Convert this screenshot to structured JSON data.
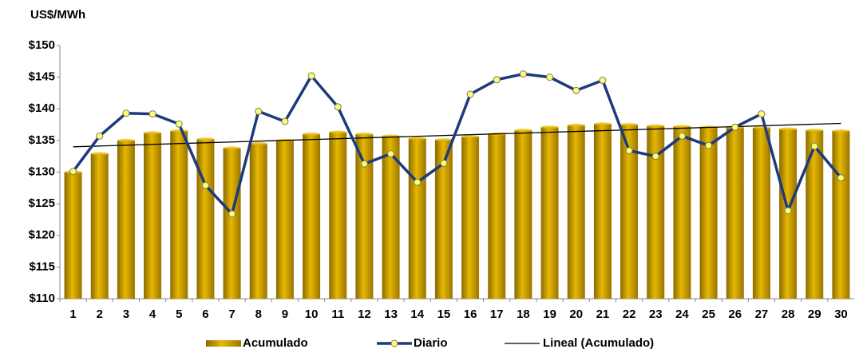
{
  "chart_data": {
    "type": "bar-line",
    "y_label": "US$/MWh",
    "categories": [
      "1",
      "2",
      "3",
      "4",
      "5",
      "6",
      "7",
      "8",
      "9",
      "10",
      "11",
      "12",
      "13",
      "14",
      "15",
      "16",
      "17",
      "18",
      "19",
      "20",
      "21",
      "22",
      "23",
      "24",
      "25",
      "26",
      "27",
      "28",
      "29",
      "30"
    ],
    "series": [
      {
        "name": "Acumulado",
        "type": "bar",
        "color": "#e6b800",
        "values": [
          130.0,
          132.9,
          135.0,
          136.2,
          136.5,
          135.2,
          133.8,
          134.5,
          135.0,
          136.0,
          136.3,
          136.0,
          135.7,
          135.3,
          135.1,
          135.6,
          136.0,
          136.6,
          137.1,
          137.4,
          137.6,
          137.5,
          137.3,
          137.2,
          137.1,
          137.1,
          137.0,
          136.8,
          136.6,
          136.5
        ]
      },
      {
        "name": "Diario",
        "type": "line",
        "color": "#1f3a7a",
        "marker_color": "#ffff66",
        "values": [
          130.1,
          135.7,
          139.3,
          139.2,
          137.6,
          127.9,
          123.4,
          139.6,
          138.0,
          145.2,
          140.3,
          131.3,
          132.9,
          128.4,
          131.4,
          142.3,
          144.6,
          145.5,
          145.0,
          142.9,
          144.5,
          133.4,
          132.5,
          135.7,
          134.2,
          137.1,
          139.2,
          123.9,
          134.1,
          129.1
        ]
      }
    ],
    "trendline": {
      "name": "Lineal (Acumulado)",
      "color": "#000000",
      "start": 134.0,
      "end": 137.7
    },
    "ylim": [
      110,
      150
    ],
    "yticks": [
      {
        "value": 110,
        "label": "$110"
      },
      {
        "value": 115,
        "label": "$115"
      },
      {
        "value": 120,
        "label": "$120"
      },
      {
        "value": 125,
        "label": "$125"
      },
      {
        "value": 130,
        "label": "$130"
      },
      {
        "value": 135,
        "label": "$135"
      },
      {
        "value": 140,
        "label": "$140"
      },
      {
        "value": 145,
        "label": "$145"
      },
      {
        "value": 150,
        "label": "$150"
      }
    ]
  }
}
